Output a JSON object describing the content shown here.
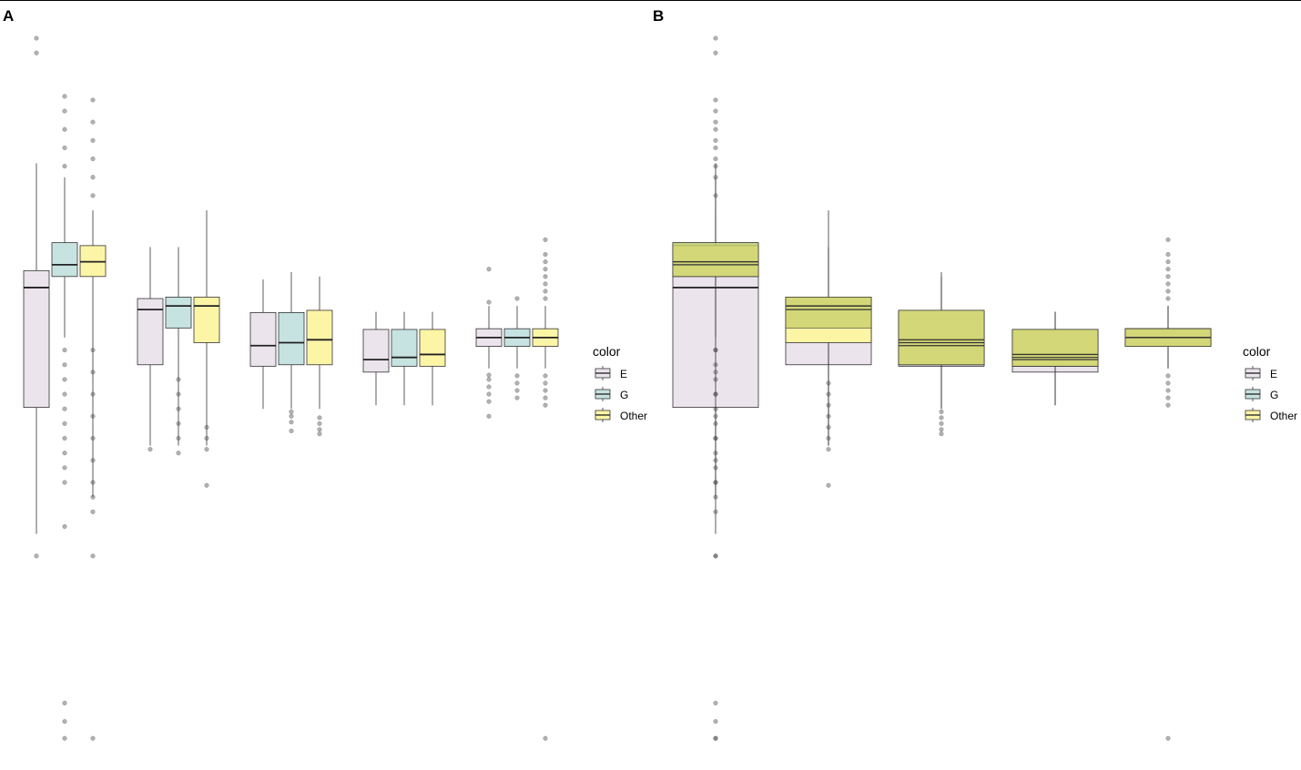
{
  "chart_data": [
    {
      "panel": "A",
      "type": "boxplot",
      "title": "",
      "xlabel": "",
      "ylabel": "",
      "grid": false,
      "ylim": [
        0,
        100
      ],
      "dodge": true,
      "legend": {
        "title": "color",
        "position": "right",
        "entries": [
          "E",
          "G",
          "Other"
        ]
      },
      "colors": {
        "E": "#ebe4ec",
        "G": "#c7e3e1",
        "Other": "#fdf5a6"
      },
      "groups": [
        {
          "boxes": [
            {
              "series": "E",
              "whisker_low": 30.0,
              "q1": 47.2,
              "median": 63.5,
              "q3": 65.8,
              "whisker_high": 80.4,
              "outliers": [
                27.0,
                97.4,
                95.4
              ]
            },
            {
              "series": "G",
              "whisker_low": 56.7,
              "q1": 65.0,
              "median": 66.6,
              "q3": 69.6,
              "whisker_high": 78.5,
              "outliers": [
                31.0,
                7.0,
                4.5,
                2.2,
                37.0,
                39.0,
                41.0,
                43.0,
                45.0,
                47.0,
                49.0,
                51.0,
                53.0,
                55.0,
                80.0,
                82.5,
                85.0,
                87.5,
                89.5
              ]
            },
            {
              "series": "Other",
              "whisker_low": 35.0,
              "q1": 65.0,
              "median": 67.0,
              "q3": 69.2,
              "whisker_high": 74.0,
              "outliers": [
                27.0,
                2.2,
                33.0,
                35.0,
                37.0,
                40.0,
                43.0,
                46.0,
                49.0,
                52.0,
                55.0,
                76.0,
                78.5,
                81.0,
                83.5,
                86.0,
                89.0
              ]
            }
          ]
        },
        {
          "boxes": [
            {
              "series": "E",
              "whisker_low": 42.0,
              "q1": 53.0,
              "median": 60.5,
              "q3": 62.0,
              "whisker_high": 69.0,
              "outliers": [
                41.5
              ]
            },
            {
              "series": "G",
              "whisker_low": 42.0,
              "q1": 58.0,
              "median": 61.0,
              "q3": 62.2,
              "whisker_high": 69.0,
              "outliers": [
                41.0,
                43.0,
                45.0,
                47.0,
                49.0,
                51.0
              ]
            },
            {
              "series": "Other",
              "whisker_low": 42.0,
              "q1": 56.0,
              "median": 61.0,
              "q3": 62.2,
              "whisker_high": 74.0,
              "outliers": [
                36.6,
                41.5,
                43.0,
                44.5
              ]
            }
          ]
        },
        {
          "boxes": [
            {
              "series": "E",
              "whisker_low": 47.0,
              "q1": 52.8,
              "median": 55.6,
              "q3": 60.1,
              "whisker_high": 64.6,
              "outliers": []
            },
            {
              "series": "G",
              "whisker_low": 47.0,
              "q1": 53.0,
              "median": 56.0,
              "q3": 60.1,
              "whisker_high": 65.6,
              "outliers": [
                44.0,
                45.2,
                46.0,
                46.6
              ]
            },
            {
              "series": "Other",
              "whisker_low": 47.0,
              "q1": 53.0,
              "median": 56.4,
              "q3": 60.4,
              "whisker_high": 65.0,
              "outliers": [
                43.6,
                44.2,
                45.0,
                45.8
              ]
            }
          ]
        },
        {
          "boxes": [
            {
              "series": "E",
              "whisker_low": 47.5,
              "q1": 52.0,
              "median": 53.7,
              "q3": 57.8,
              "whisker_high": 60.2,
              "outliers": []
            },
            {
              "series": "G",
              "whisker_low": 47.5,
              "q1": 52.8,
              "median": 54.0,
              "q3": 57.8,
              "whisker_high": 60.2,
              "outliers": []
            },
            {
              "series": "Other",
              "whisker_low": 47.5,
              "q1": 52.8,
              "median": 54.4,
              "q3": 57.8,
              "whisker_high": 60.2,
              "outliers": []
            }
          ]
        },
        {
          "boxes": [
            {
              "series": "E",
              "whisker_low": 52.5,
              "q1": 55.5,
              "median": 56.7,
              "q3": 57.9,
              "whisker_high": 61.0,
              "outliers": [
                46.0,
                48.0,
                49.0,
                50.0,
                51.0,
                51.6,
                61.5,
                66.0
              ]
            },
            {
              "series": "G",
              "whisker_low": 52.5,
              "q1": 55.5,
              "median": 56.7,
              "q3": 57.9,
              "whisker_high": 61.0,
              "outliers": [
                48.5,
                49.5,
                50.5,
                51.5,
                62.0
              ]
            },
            {
              "series": "Other",
              "whisker_low": 52.5,
              "q1": 55.5,
              "median": 56.7,
              "q3": 57.9,
              "whisker_high": 61.0,
              "outliers": [
                2.2,
                47.5,
                48.5,
                49.5,
                50.5,
                51.5,
                62.0,
                63.0,
                64.0,
                65.0,
                66.0,
                67.0,
                68.0,
                70.0
              ]
            }
          ]
        }
      ]
    },
    {
      "panel": "B",
      "type": "boxplot",
      "title": "",
      "xlabel": "",
      "ylabel": "",
      "grid": false,
      "ylim": [
        0,
        100
      ],
      "dodge": false,
      "overlay_tint": "#c8cf6c",
      "legend": {
        "title": "color",
        "position": "right",
        "entries": [
          "E",
          "G",
          "Other"
        ]
      },
      "colors": {
        "E": "#ebe4ec",
        "G": "#c7e3e1",
        "Other": "#fdf5a6"
      },
      "note": "boxes of the three series are drawn in the same position and overlap",
      "groups": [
        {
          "boxes": [
            {
              "series": "E",
              "whisker_low": 30.0,
              "q1": 47.2,
              "median": 63.5,
              "q3": 65.8,
              "whisker_high": 80.4,
              "outliers": [
                27.0,
                97.4,
                95.4
              ]
            },
            {
              "series": "G",
              "whisker_low": 56.7,
              "q1": 65.0,
              "median": 66.6,
              "q3": 69.6,
              "whisker_high": 78.5,
              "outliers": [
                7.0,
                4.5,
                2.2,
                37.0,
                39.0,
                41.0,
                43.0,
                45.0,
                47.0,
                49.0,
                51.0,
                53.0,
                55.0,
                80.0,
                82.5,
                85.0,
                87.5
              ]
            },
            {
              "series": "Other",
              "whisker_low": 35.0,
              "q1": 65.0,
              "median": 67.0,
              "q3": 69.2,
              "whisker_high": 74.0,
              "outliers": [
                27.0,
                2.2,
                33.0,
                35.0,
                37.0,
                40.0,
                43.0,
                46.0,
                49.0,
                52.0,
                55.0,
                76.0,
                78.5,
                81.0,
                83.5,
                86.0,
                89.0
              ]
            }
          ]
        },
        {
          "boxes": [
            {
              "series": "E",
              "whisker_low": 42.0,
              "q1": 53.0,
              "median": 60.5,
              "q3": 62.0,
              "whisker_high": 69.0,
              "outliers": []
            },
            {
              "series": "G",
              "whisker_low": 42.0,
              "q1": 58.0,
              "median": 61.0,
              "q3": 62.2,
              "whisker_high": 69.0,
              "outliers": []
            },
            {
              "series": "Other",
              "whisker_low": 42.0,
              "q1": 56.0,
              "median": 61.0,
              "q3": 62.2,
              "whisker_high": 74.0,
              "outliers": [
                36.6,
                41.5,
                43.0,
                44.5,
                46.0,
                47.5,
                49.0,
                50.5
              ]
            }
          ]
        },
        {
          "boxes": [
            {
              "series": "E",
              "whisker_low": 47.0,
              "q1": 52.8,
              "median": 55.6,
              "q3": 60.1,
              "whisker_high": 64.6,
              "outliers": []
            },
            {
              "series": "G",
              "whisker_low": 47.0,
              "q1": 53.0,
              "median": 56.0,
              "q3": 60.1,
              "whisker_high": 65.6,
              "outliers": []
            },
            {
              "series": "Other",
              "whisker_low": 47.0,
              "q1": 53.0,
              "median": 56.4,
              "q3": 60.4,
              "whisker_high": 65.0,
              "outliers": [
                43.6,
                44.2,
                45.0,
                45.8,
                46.6
              ]
            }
          ]
        },
        {
          "boxes": [
            {
              "series": "E",
              "whisker_low": 47.5,
              "q1": 52.0,
              "median": 53.7,
              "q3": 57.8,
              "whisker_high": 60.2,
              "outliers": []
            },
            {
              "series": "G",
              "whisker_low": 47.5,
              "q1": 52.8,
              "median": 54.0,
              "q3": 57.8,
              "whisker_high": 60.2,
              "outliers": []
            },
            {
              "series": "Other",
              "whisker_low": 47.5,
              "q1": 52.8,
              "median": 54.4,
              "q3": 57.8,
              "whisker_high": 60.2,
              "outliers": []
            }
          ]
        },
        {
          "boxes": [
            {
              "series": "E",
              "whisker_low": 52.5,
              "q1": 55.5,
              "median": 56.7,
              "q3": 57.9,
              "whisker_high": 61.0,
              "outliers": []
            },
            {
              "series": "G",
              "whisker_low": 52.5,
              "q1": 55.5,
              "median": 56.7,
              "q3": 57.9,
              "whisker_high": 61.0,
              "outliers": []
            },
            {
              "series": "Other",
              "whisker_low": 52.5,
              "q1": 55.5,
              "median": 56.7,
              "q3": 57.9,
              "whisker_high": 61.0,
              "outliers": [
                2.2,
                47.5,
                48.5,
                49.5,
                50.5,
                51.5,
                62.0,
                63.0,
                64.0,
                65.0,
                66.0,
                67.0,
                68.0,
                70.0
              ]
            }
          ]
        }
      ]
    }
  ]
}
